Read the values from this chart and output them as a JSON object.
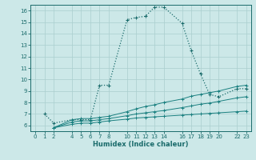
{
  "xlabel": "Humidex (Indice chaleur)",
  "bg_color": "#cce8e8",
  "grid_color": "#aacece",
  "line_color_main": "#1a6b6b",
  "line_color_flat": "#1a8080",
  "xlim": [
    -0.5,
    23.5
  ],
  "ylim": [
    5.5,
    16.5
  ],
  "xticks": [
    0,
    1,
    2,
    4,
    5,
    6,
    7,
    8,
    10,
    11,
    12,
    13,
    14,
    16,
    17,
    18,
    19,
    20,
    22,
    23
  ],
  "yticks": [
    6,
    7,
    8,
    9,
    10,
    11,
    12,
    13,
    14,
    15,
    16
  ],
  "series_main_x": [
    1,
    2,
    4,
    5,
    6,
    7,
    8,
    10,
    11,
    12,
    13,
    14,
    16,
    17,
    18,
    19,
    20,
    22,
    23
  ],
  "series_main_y": [
    7.0,
    6.2,
    6.5,
    6.5,
    6.5,
    9.5,
    9.5,
    15.2,
    15.4,
    15.5,
    16.3,
    16.3,
    14.9,
    12.5,
    10.5,
    8.7,
    8.5,
    9.2,
    9.2
  ],
  "series_flat1_x": [
    2,
    4,
    5,
    6,
    7,
    8,
    10,
    11,
    12,
    13,
    14,
    16,
    17,
    18,
    19,
    20,
    22,
    23
  ],
  "series_flat1_y": [
    5.8,
    6.5,
    6.6,
    6.6,
    6.7,
    6.8,
    7.2,
    7.45,
    7.65,
    7.8,
    8.0,
    8.3,
    8.55,
    8.7,
    8.85,
    9.0,
    9.4,
    9.5
  ],
  "series_flat2_x": [
    2,
    4,
    5,
    6,
    7,
    8,
    10,
    11,
    12,
    13,
    14,
    16,
    17,
    18,
    19,
    20,
    22,
    23
  ],
  "series_flat2_y": [
    5.8,
    6.3,
    6.4,
    6.4,
    6.5,
    6.6,
    6.85,
    7.0,
    7.1,
    7.2,
    7.3,
    7.55,
    7.7,
    7.85,
    7.95,
    8.1,
    8.4,
    8.5
  ],
  "series_flat3_x": [
    2,
    4,
    5,
    6,
    7,
    8,
    10,
    11,
    12,
    13,
    14,
    16,
    17,
    18,
    19,
    20,
    22,
    23
  ],
  "series_flat3_y": [
    5.8,
    6.1,
    6.2,
    6.2,
    6.3,
    6.4,
    6.55,
    6.65,
    6.7,
    6.75,
    6.8,
    6.9,
    6.95,
    7.0,
    7.05,
    7.1,
    7.2,
    7.25
  ]
}
